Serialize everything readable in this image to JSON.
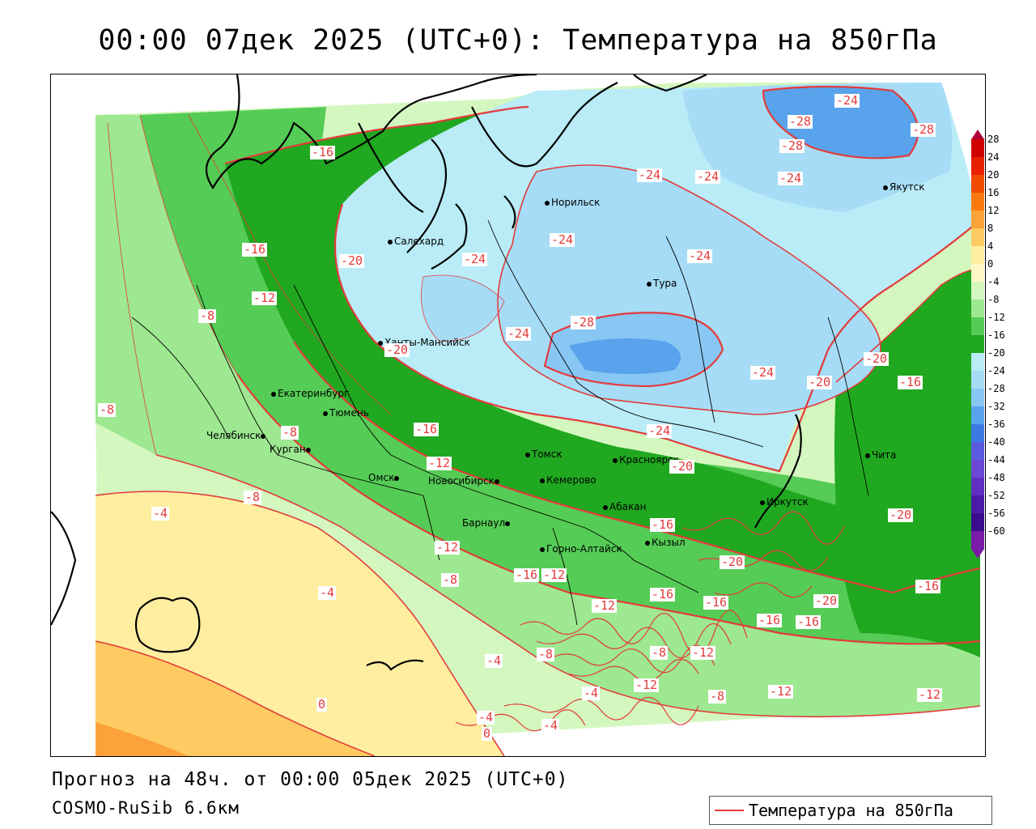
{
  "title": "00:00 07дек 2025 (UTC+0): Температура на 850гПа",
  "footer": {
    "forecast": "Прогноз на 48ч. от 00:00 05дек 2025 (UTC+0)",
    "model": "COSMO-RuSib 6.6км"
  },
  "legend": {
    "series_label": "Температура на 850гПа",
    "line_color": "#e33b3b"
  },
  "scale": {
    "labels": [
      "28",
      "24",
      "20",
      "16",
      "12",
      "8",
      "4",
      "0",
      "-4",
      "-8",
      "-12",
      "-16",
      "-20",
      "-24",
      "-28",
      "-32",
      "-36",
      "-40",
      "-44",
      "-48",
      "-52",
      "-56",
      "-60"
    ],
    "colors": [
      "#b0003a",
      "#d00000",
      "#e82000",
      "#f24a00",
      "#fa7a10",
      "#fba23a",
      "#fdcb62",
      "#ffeea0",
      "#fff7c4",
      "#d4f7c0",
      "#9de890",
      "#55cc55",
      "#20a820",
      "#b9ecf7",
      "#a6dcf6",
      "#88c6f3",
      "#58a3ec",
      "#3d79e4",
      "#5b5ae0",
      "#6b47d6",
      "#5f2fc2",
      "#4b1aa8",
      "#3a0b8c",
      "#7a1aa8"
    ]
  },
  "cities": [
    {
      "name": "Норильск"
    },
    {
      "name": "Якутск"
    },
    {
      "name": "Салехард"
    },
    {
      "name": "Тура"
    },
    {
      "name": "Ханты-Мансийск"
    },
    {
      "name": "Екатеринбург"
    },
    {
      "name": "Тюмень"
    },
    {
      "name": "Челябинск"
    },
    {
      "name": "Курган"
    },
    {
      "name": "Омск"
    },
    {
      "name": "Новосибирск"
    },
    {
      "name": "Томск"
    },
    {
      "name": "Кемерово"
    },
    {
      "name": "Красноярск"
    },
    {
      "name": "Барнаул"
    },
    {
      "name": "Абакан"
    },
    {
      "name": "Иркутск"
    },
    {
      "name": "Чита"
    },
    {
      "name": "Кызыл"
    },
    {
      "name": "Горно-Алтайск"
    }
  ],
  "contour_labels": [
    "-16",
    "-24",
    "-24",
    "-28",
    "-24",
    "-28",
    "-28",
    "-16",
    "-20",
    "-24",
    "-24",
    "-24",
    "-24",
    "-12",
    "-8",
    "-20",
    "-24",
    "-28",
    "-24",
    "-20",
    "-20",
    "-16",
    "-8",
    "-8",
    "-16",
    "-24",
    "-12",
    "-20",
    "-8",
    "-4",
    "-12",
    "-16",
    "-20",
    "-20",
    "-16",
    "-12",
    "-8",
    "-4",
    "-12",
    "-16",
    "-16",
    "-16",
    "-16",
    "-20",
    "-16",
    "-8",
    "-12",
    "-4",
    "-8",
    "-12",
    "-12",
    "-4",
    "0",
    "-8",
    "-12",
    "-4",
    "-4",
    "0"
  ]
}
